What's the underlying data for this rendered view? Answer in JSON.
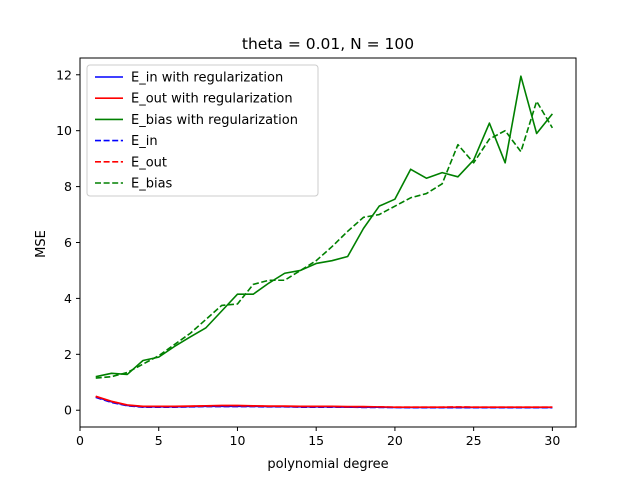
{
  "chart_data": {
    "type": "line",
    "title": "theta = 0.01, N = 100",
    "xlabel": "polynomial degree",
    "ylabel": "MSE",
    "xlim": [
      0,
      31.5
    ],
    "ylim": [
      -0.6,
      12.6
    ],
    "xticks": [
      0,
      5,
      10,
      15,
      20,
      25,
      30
    ],
    "yticks": [
      0,
      2,
      4,
      6,
      8,
      10,
      12
    ],
    "grid": false,
    "legend_position": "top-left",
    "x": [
      1,
      2,
      3,
      4,
      5,
      6,
      7,
      8,
      9,
      10,
      11,
      12,
      13,
      14,
      15,
      16,
      17,
      18,
      19,
      20,
      21,
      22,
      23,
      24,
      25,
      26,
      27,
      28,
      29,
      30
    ],
    "series": [
      {
        "name": "E_in with regularization",
        "color": "#0000ff",
        "style": "solid",
        "values": [
          0.48,
          0.3,
          0.17,
          0.12,
          0.12,
          0.12,
          0.13,
          0.14,
          0.14,
          0.14,
          0.14,
          0.13,
          0.13,
          0.12,
          0.12,
          0.12,
          0.11,
          0.11,
          0.11,
          0.1,
          0.1,
          0.1,
          0.1,
          0.1,
          0.1,
          0.1,
          0.1,
          0.1,
          0.1,
          0.1
        ]
      },
      {
        "name": "E_out with regularization",
        "color": "#ff0000",
        "style": "solid",
        "values": [
          0.5,
          0.32,
          0.19,
          0.14,
          0.14,
          0.14,
          0.15,
          0.16,
          0.17,
          0.17,
          0.16,
          0.15,
          0.15,
          0.14,
          0.14,
          0.14,
          0.13,
          0.13,
          0.12,
          0.11,
          0.11,
          0.11,
          0.11,
          0.11,
          0.11,
          0.11,
          0.11,
          0.11,
          0.11,
          0.11
        ]
      },
      {
        "name": "E_bias with regularization",
        "color": "#008000",
        "style": "solid",
        "values": [
          1.2,
          1.32,
          1.28,
          1.78,
          1.9,
          2.28,
          2.62,
          2.95,
          3.55,
          4.15,
          4.15,
          4.55,
          4.9,
          5.0,
          5.25,
          5.35,
          5.5,
          6.5,
          7.3,
          7.55,
          8.62,
          8.3,
          8.5,
          8.35,
          8.95,
          10.27,
          8.85,
          11.95,
          9.9,
          10.6
        ]
      },
      {
        "name": "E_in",
        "color": "#0000ff",
        "style": "dashed",
        "values": [
          0.46,
          0.28,
          0.16,
          0.11,
          0.11,
          0.11,
          0.12,
          0.13,
          0.13,
          0.13,
          0.13,
          0.12,
          0.12,
          0.11,
          0.11,
          0.11,
          0.11,
          0.1,
          0.1,
          0.1,
          0.09,
          0.09,
          0.09,
          0.09,
          0.09,
          0.09,
          0.09,
          0.09,
          0.09,
          0.09
        ]
      },
      {
        "name": "E_out",
        "color": "#ff0000",
        "style": "dashed",
        "values": [
          0.49,
          0.31,
          0.18,
          0.13,
          0.13,
          0.13,
          0.14,
          0.15,
          0.16,
          0.16,
          0.15,
          0.14,
          0.14,
          0.13,
          0.13,
          0.13,
          0.12,
          0.12,
          0.12,
          0.11,
          0.11,
          0.11,
          0.11,
          0.12,
          0.11,
          0.11,
          0.11,
          0.11,
          0.11,
          0.11
        ]
      },
      {
        "name": "E_bias",
        "color": "#008000",
        "style": "dashed",
        "values": [
          1.15,
          1.2,
          1.35,
          1.65,
          1.95,
          2.35,
          2.75,
          3.25,
          3.75,
          3.8,
          4.5,
          4.65,
          4.65,
          5.0,
          5.35,
          5.85,
          6.4,
          6.9,
          7.0,
          7.3,
          7.6,
          7.75,
          8.1,
          9.5,
          8.85,
          9.7,
          10.0,
          9.25,
          11.05,
          10.1
        ]
      }
    ]
  }
}
